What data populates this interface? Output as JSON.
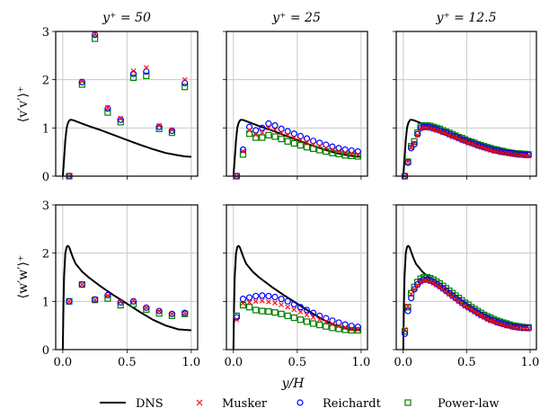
{
  "chart_data": {
    "type": "scatter",
    "xlabel": "y/H",
    "colors": {
      "dns": "#000000",
      "musker": "#ff0000",
      "reichardt": "#0000ff",
      "power_law": "#008000",
      "grid": "#c8c8c8"
    },
    "legend": {
      "placement": "bottom-center",
      "entries": [
        {
          "key": "dns",
          "label": "DNS",
          "marker": "line"
        },
        {
          "key": "musker",
          "label": "Musker",
          "marker": "x"
        },
        {
          "key": "reichardt",
          "label": "Reichardt",
          "marker": "circle"
        },
        {
          "key": "power_law",
          "label": "Power-law",
          "marker": "square"
        }
      ]
    },
    "row_labels": [
      {
        "text": "⟨v′v′⟩⁺"
      },
      {
        "text": "⟨w′w′⟩⁺"
      }
    ],
    "column_titles": [
      "y⁺ = 50",
      "y⁺ = 25",
      "y⁺ = 12.5"
    ],
    "xlim": [
      -0.055,
      1.05
    ],
    "ylim": [
      0,
      3
    ],
    "xticks": [
      0.0,
      0.5,
      1.0
    ],
    "xtick_labels": [
      "0.0",
      "0.5",
      "1.0"
    ],
    "yticks": [
      0,
      1,
      2,
      3
    ],
    "ytick_labels": [
      "0",
      "1",
      "2",
      "3"
    ],
    "grid": true,
    "dns": {
      "vv": {
        "x": [
          0.0,
          0.01,
          0.02,
          0.03,
          0.04,
          0.05,
          0.06,
          0.08,
          0.1,
          0.15,
          0.2,
          0.3,
          0.4,
          0.5,
          0.6,
          0.7,
          0.8,
          0.9,
          0.95,
          1.0
        ],
        "y": [
          0.0,
          0.35,
          0.75,
          1.0,
          1.1,
          1.15,
          1.17,
          1.16,
          1.14,
          1.09,
          1.04,
          0.95,
          0.85,
          0.75,
          0.65,
          0.56,
          0.48,
          0.43,
          0.41,
          0.4
        ]
      },
      "ww": {
        "x": [
          0.0,
          0.005,
          0.01,
          0.02,
          0.03,
          0.04,
          0.05,
          0.06,
          0.08,
          0.1,
          0.15,
          0.2,
          0.3,
          0.4,
          0.5,
          0.6,
          0.7,
          0.8,
          0.9,
          0.95,
          1.0
        ],
        "y": [
          0.0,
          0.9,
          1.5,
          2.0,
          2.13,
          2.15,
          2.12,
          2.05,
          1.9,
          1.78,
          1.62,
          1.5,
          1.3,
          1.12,
          0.95,
          0.78,
          0.62,
          0.5,
          0.42,
          0.41,
          0.4
        ]
      }
    },
    "panels": [
      {
        "row": 0,
        "col": 0,
        "quantity": "vv",
        "y_plus": "50",
        "x": [
          0.05,
          0.15,
          0.25,
          0.35,
          0.45,
          0.55,
          0.65,
          0.75,
          0.85,
          0.95
        ],
        "series": [
          {
            "name": "Musker",
            "values": [
              0.0,
              1.97,
              2.95,
              1.42,
              1.2,
              2.18,
              2.25,
              1.05,
              0.96,
              2.0
            ]
          },
          {
            "name": "Reichardt",
            "values": [
              0.0,
              1.95,
              2.93,
              1.4,
              1.17,
              2.12,
              2.17,
              1.02,
              0.94,
              1.93
            ]
          },
          {
            "name": "Power-law",
            "values": [
              0.0,
              1.9,
              2.85,
              1.32,
              1.12,
              2.04,
              2.08,
              0.98,
              0.9,
              1.85
            ]
          }
        ]
      },
      {
        "row": 0,
        "col": 1,
        "quantity": "vv",
        "y_plus": "25",
        "x": [
          0.025,
          0.075,
          0.125,
          0.175,
          0.225,
          0.275,
          0.325,
          0.375,
          0.425,
          0.475,
          0.525,
          0.575,
          0.625,
          0.675,
          0.725,
          0.775,
          0.825,
          0.875,
          0.925,
          0.975
        ],
        "series": [
          {
            "name": "Musker",
            "values": [
              0.0,
              0.52,
              0.95,
              0.86,
              0.9,
              1.0,
              0.96,
              0.9,
              0.85,
              0.8,
              0.75,
              0.7,
              0.66,
              0.62,
              0.58,
              0.55,
              0.52,
              0.49,
              0.47,
              0.45
            ]
          },
          {
            "name": "Reichardt",
            "values": [
              0.0,
              0.55,
              1.02,
              0.95,
              1.0,
              1.09,
              1.05,
              0.98,
              0.93,
              0.88,
              0.83,
              0.78,
              0.73,
              0.69,
              0.65,
              0.61,
              0.58,
              0.55,
              0.53,
              0.51
            ]
          },
          {
            "name": "Power-law",
            "values": [
              0.0,
              0.45,
              0.88,
              0.8,
              0.8,
              0.85,
              0.82,
              0.77,
              0.72,
              0.68,
              0.64,
              0.6,
              0.57,
              0.54,
              0.51,
              0.48,
              0.46,
              0.43,
              0.42,
              0.41
            ]
          }
        ]
      },
      {
        "row": 0,
        "col": 2,
        "quantity": "vv",
        "y_plus": "12.5",
        "x": [
          0.0125,
          0.0375,
          0.0625,
          0.0875,
          0.1125,
          0.1375,
          0.1625,
          0.1875,
          0.2125,
          0.2375,
          0.2625,
          0.2875,
          0.3125,
          0.3375,
          0.3625,
          0.3875,
          0.4125,
          0.4375,
          0.4625,
          0.4875,
          0.5125,
          0.5375,
          0.5625,
          0.5875,
          0.6125,
          0.6375,
          0.6625,
          0.6875,
          0.7125,
          0.7375,
          0.7625,
          0.7875,
          0.8125,
          0.8375,
          0.8625,
          0.8875,
          0.9125,
          0.9375,
          0.9625,
          0.9875
        ],
        "series": [
          {
            "name": "Musker",
            "values": [
              0.0,
              0.3,
              0.6,
              0.68,
              0.85,
              0.98,
              1.0,
              1.0,
              0.99,
              0.97,
              0.95,
              0.93,
              0.9,
              0.88,
              0.85,
              0.82,
              0.8,
              0.77,
              0.74,
              0.72,
              0.69,
              0.67,
              0.65,
              0.62,
              0.6,
              0.58,
              0.56,
              0.54,
              0.52,
              0.51,
              0.49,
              0.48,
              0.47,
              0.46,
              0.45,
              0.44,
              0.43,
              0.43,
              0.42,
              0.42
            ]
          },
          {
            "name": "Reichardt",
            "values": [
              0.0,
              0.28,
              0.58,
              0.66,
              0.87,
              1.0,
              1.02,
              1.02,
              1.01,
              0.99,
              0.97,
              0.95,
              0.92,
              0.9,
              0.87,
              0.84,
              0.82,
              0.79,
              0.76,
              0.74,
              0.71,
              0.69,
              0.67,
              0.64,
              0.62,
              0.6,
              0.58,
              0.56,
              0.54,
              0.53,
              0.51,
              0.5,
              0.49,
              0.48,
              0.47,
              0.46,
              0.45,
              0.45,
              0.44,
              0.44
            ]
          },
          {
            "name": "Power-law",
            "values": [
              0.0,
              0.3,
              0.62,
              0.72,
              0.9,
              1.03,
              1.05,
              1.05,
              1.04,
              1.02,
              1.0,
              0.98,
              0.95,
              0.92,
              0.9,
              0.87,
              0.84,
              0.81,
              0.79,
              0.76,
              0.73,
              0.71,
              0.69,
              0.66,
              0.64,
              0.62,
              0.6,
              0.58,
              0.56,
              0.55,
              0.53,
              0.52,
              0.5,
              0.49,
              0.48,
              0.47,
              0.47,
              0.46,
              0.46,
              0.45
            ]
          }
        ]
      },
      {
        "row": 1,
        "col": 0,
        "quantity": "ww",
        "y_plus": "50",
        "x": [
          0.05,
          0.15,
          0.25,
          0.35,
          0.45,
          0.55,
          0.65,
          0.75,
          0.85,
          0.95
        ],
        "series": [
          {
            "name": "Musker",
            "values": [
              1.0,
              1.35,
              1.03,
              1.12,
              0.99,
              1.01,
              0.87,
              0.8,
              0.74,
              0.75
            ]
          },
          {
            "name": "Reichardt",
            "values": [
              1.0,
              1.35,
              1.04,
              1.13,
              0.98,
              1.0,
              0.87,
              0.8,
              0.74,
              0.76
            ]
          },
          {
            "name": "Power-law",
            "values": [
              1.0,
              1.35,
              1.03,
              1.06,
              0.92,
              0.94,
              0.83,
              0.75,
              0.7,
              0.74
            ]
          }
        ]
      },
      {
        "row": 1,
        "col": 1,
        "quantity": "ww",
        "y_plus": "25",
        "x": [
          0.025,
          0.075,
          0.125,
          0.175,
          0.225,
          0.275,
          0.325,
          0.375,
          0.425,
          0.475,
          0.525,
          0.575,
          0.625,
          0.675,
          0.725,
          0.775,
          0.825,
          0.875,
          0.925,
          0.975
        ],
        "series": [
          {
            "name": "Musker",
            "values": [
              0.62,
              0.96,
              0.98,
              1.0,
              1.01,
              0.99,
              0.97,
              0.93,
              0.88,
              0.83,
              0.78,
              0.72,
              0.67,
              0.62,
              0.57,
              0.53,
              0.49,
              0.46,
              0.43,
              0.42
            ]
          },
          {
            "name": "Reichardt",
            "values": [
              0.67,
              1.05,
              1.08,
              1.11,
              1.12,
              1.11,
              1.09,
              1.05,
              1.0,
              0.94,
              0.88,
              0.82,
              0.76,
              0.7,
              0.65,
              0.6,
              0.56,
              0.52,
              0.49,
              0.47
            ]
          },
          {
            "name": "Power-law",
            "values": [
              0.7,
              0.92,
              0.88,
              0.82,
              0.8,
              0.79,
              0.77,
              0.74,
              0.7,
              0.66,
              0.62,
              0.58,
              0.54,
              0.51,
              0.48,
              0.45,
              0.43,
              0.41,
              0.4,
              0.4
            ]
          }
        ]
      },
      {
        "row": 1,
        "col": 2,
        "quantity": "ww",
        "y_plus": "12.5",
        "x": [
          0.0125,
          0.0375,
          0.0625,
          0.0875,
          0.1125,
          0.1375,
          0.1625,
          0.1875,
          0.2125,
          0.2375,
          0.2625,
          0.2875,
          0.3125,
          0.3375,
          0.3625,
          0.3875,
          0.4125,
          0.4375,
          0.4625,
          0.4875,
          0.5125,
          0.5375,
          0.5625,
          0.5875,
          0.6125,
          0.6375,
          0.6625,
          0.6875,
          0.7125,
          0.7375,
          0.7625,
          0.7875,
          0.8125,
          0.8375,
          0.8625,
          0.8875,
          0.9125,
          0.9375,
          0.9875,
          0.9625
        ],
        "series": [
          {
            "name": "Musker",
            "values": [
              0.42,
              0.9,
              1.15,
              1.25,
              1.33,
              1.4,
              1.43,
              1.43,
              1.41,
              1.38,
              1.34,
              1.3,
              1.25,
              1.2,
              1.15,
              1.1,
              1.05,
              1.0,
              0.95,
              0.9,
              0.86,
              0.82,
              0.78,
              0.74,
              0.7,
              0.67,
              0.63,
              0.6,
              0.58,
              0.55,
              0.53,
              0.51,
              0.49,
              0.48,
              0.46,
              0.45,
              0.44,
              0.44,
              0.43,
              0.43
            ]
          },
          {
            "name": "Reichardt",
            "values": [
              0.33,
              0.8,
              1.07,
              1.25,
              1.35,
              1.42,
              1.45,
              1.45,
              1.43,
              1.4,
              1.36,
              1.32,
              1.27,
              1.22,
              1.17,
              1.12,
              1.07,
              1.02,
              0.97,
              0.92,
              0.88,
              0.84,
              0.8,
              0.76,
              0.72,
              0.69,
              0.65,
              0.62,
              0.6,
              0.57,
              0.55,
              0.53,
              0.51,
              0.5,
              0.48,
              0.47,
              0.46,
              0.45,
              0.45,
              0.45
            ]
          },
          {
            "name": "Power-law",
            "values": [
              0.38,
              0.88,
              1.17,
              1.3,
              1.4,
              1.47,
              1.5,
              1.5,
              1.48,
              1.45,
              1.41,
              1.37,
              1.32,
              1.27,
              1.22,
              1.17,
              1.12,
              1.07,
              1.02,
              0.97,
              0.93,
              0.88,
              0.84,
              0.8,
              0.76,
              0.72,
              0.69,
              0.66,
              0.63,
              0.6,
              0.58,
              0.56,
              0.54,
              0.52,
              0.5,
              0.49,
              0.48,
              0.47,
              0.46,
              0.46
            ]
          }
        ]
      }
    ]
  }
}
